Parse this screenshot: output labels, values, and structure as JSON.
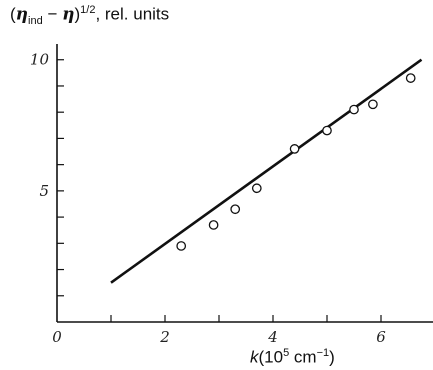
{
  "chart_data": {
    "type": "scatter",
    "ylabel": {
      "open": "(",
      "eta1": "η",
      "sub": "ind",
      "minus": " − ",
      "eta2": "η",
      "close": ")",
      "sup": "1/2",
      "suffix": ", rel. units"
    },
    "xlabel": {
      "var": "k",
      "pre": "(10",
      "sup": "5",
      "unit": " cm",
      "sup2": "−1",
      "post": ")"
    },
    "xlim": [
      0,
      7
    ],
    "ylim": [
      0,
      10.6
    ],
    "xticks": [
      0,
      1,
      2,
      3,
      4,
      5,
      6,
      7
    ],
    "xtick_labels": [
      {
        "value": 0,
        "label": "0"
      },
      {
        "value": 2,
        "label": "2"
      },
      {
        "value": 4,
        "label": "4"
      },
      {
        "value": 6,
        "label": "6"
      }
    ],
    "yticks": [
      1,
      2,
      3,
      4,
      5,
      6,
      7,
      8,
      9,
      10
    ],
    "ytick_labels": [
      {
        "value": 5,
        "label": "5"
      },
      {
        "value": 10,
        "label": "10"
      }
    ],
    "grid": false,
    "points": [
      {
        "x": 2.3,
        "y": 2.9
      },
      {
        "x": 2.9,
        "y": 3.7
      },
      {
        "x": 3.3,
        "y": 4.3
      },
      {
        "x": 3.7,
        "y": 5.1
      },
      {
        "x": 4.4,
        "y": 6.6
      },
      {
        "x": 5.0,
        "y": 7.3
      },
      {
        "x": 5.5,
        "y": 8.1
      },
      {
        "x": 5.85,
        "y": 8.3
      },
      {
        "x": 6.55,
        "y": 9.3
      }
    ],
    "fit_line": {
      "x": [
        1.0,
        6.75
      ],
      "y": [
        1.5,
        10.0
      ]
    }
  }
}
